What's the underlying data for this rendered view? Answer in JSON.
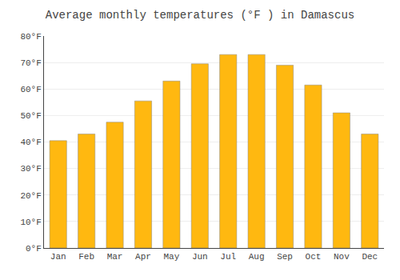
{
  "chart_data": {
    "type": "bar",
    "title": "Average monthly temperatures (°F ) in Damascus",
    "categories": [
      "Jan",
      "Feb",
      "Mar",
      "Apr",
      "May",
      "Jun",
      "Jul",
      "Aug",
      "Sep",
      "Oct",
      "Nov",
      "Dec"
    ],
    "values": [
      40.5,
      43,
      47.5,
      55.5,
      63,
      69.5,
      73,
      73,
      69,
      61.5,
      51,
      43
    ],
    "color": "#FFB810",
    "ylim": [
      0,
      80
    ],
    "yticks": [
      {
        "value": 0,
        "label": "0°F"
      },
      {
        "value": 10,
        "label": "10°F"
      },
      {
        "value": 20,
        "label": "20°F"
      },
      {
        "value": 30,
        "label": "30°F"
      },
      {
        "value": 40,
        "label": "40°F"
      },
      {
        "value": 50,
        "label": "50°F"
      },
      {
        "value": 60,
        "label": "60°F"
      },
      {
        "value": 70,
        "label": "70°F"
      },
      {
        "value": 80,
        "label": "80°F"
      }
    ],
    "grid": true
  }
}
